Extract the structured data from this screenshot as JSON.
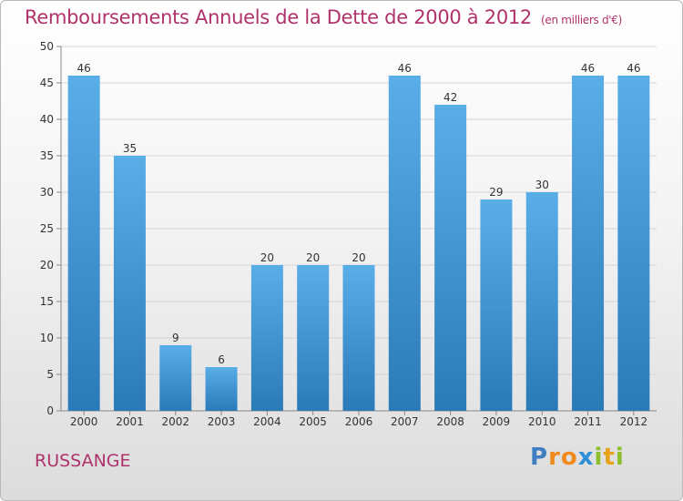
{
  "chart_data": {
    "type": "bar",
    "title": "Remboursements Annuels de la Dette de 2000 à 2012",
    "unit": "(en milliers d'€)",
    "categories": [
      "2000",
      "2001",
      "2002",
      "2003",
      "2004",
      "2005",
      "2006",
      "2007",
      "2008",
      "2009",
      "2010",
      "2011",
      "2012"
    ],
    "values": [
      46,
      35,
      9,
      6,
      20,
      20,
      20,
      46,
      42,
      29,
      30,
      46,
      46
    ],
    "ylim": [
      0,
      50
    ],
    "yticks": [
      0,
      5,
      10,
      15,
      20,
      25,
      30,
      35,
      40,
      45,
      50
    ],
    "xlabel": "",
    "ylabel": "",
    "grid": true,
    "colors": {
      "bar_light": "#5aaee8",
      "bar_dark": "#2a7ab8",
      "title": "#b0326a"
    }
  },
  "location": "RUSSANGE",
  "logo": {
    "text": "Proxiti",
    "letters": [
      {
        "ch": "P",
        "color": "#3f7fc1"
      },
      {
        "ch": "r",
        "color": "#f08a1c"
      },
      {
        "ch": "o",
        "color": "#f08a1c"
      },
      {
        "ch": "x",
        "color": "#2d8fd6"
      },
      {
        "ch": "i",
        "color": "#8cbf2a"
      },
      {
        "ch": "t",
        "color": "#e8a21a"
      },
      {
        "ch": "i",
        "color": "#8cbf2a"
      }
    ]
  }
}
